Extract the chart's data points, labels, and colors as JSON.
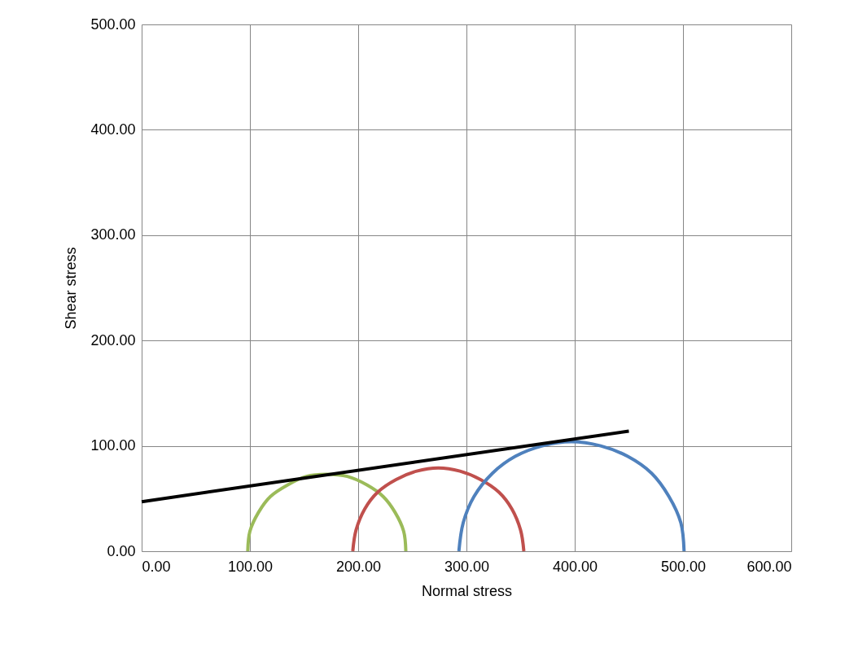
{
  "chart_data": {
    "type": "line",
    "xlabel": "Normal stress",
    "ylabel": "Shear stress",
    "xlim": [
      0,
      600
    ],
    "ylim": [
      0,
      500
    ],
    "xticks": [
      {
        "value": 0,
        "label": "0.00"
      },
      {
        "value": 100,
        "label": "100.00"
      },
      {
        "value": 200,
        "label": "200.00"
      },
      {
        "value": 300,
        "label": "300.00"
      },
      {
        "value": 400,
        "label": "400.00"
      },
      {
        "value": 500,
        "label": "500.00"
      },
      {
        "value": 600,
        "label": "600.00"
      }
    ],
    "yticks": [
      {
        "value": 0,
        "label": "0.00"
      },
      {
        "value": 100,
        "label": "100.00"
      },
      {
        "value": 200,
        "label": "200.00"
      },
      {
        "value": 300,
        "label": "300.00"
      },
      {
        "value": 400,
        "label": "400.00"
      },
      {
        "value": 500,
        "label": "500.00"
      }
    ],
    "grid": true,
    "legend": false,
    "series": [
      {
        "color": "#9bbb59",
        "x": [
          98,
          100,
          108,
          119,
          135,
          152,
          171,
          190,
          208,
          223,
          234,
          242,
          244
        ],
        "values": [
          0,
          19,
          37,
          52,
          63,
          71,
          73,
          71,
          63,
          52,
          37,
          19,
          0
        ]
      },
      {
        "color": "#c0504d",
        "x": [
          195,
          198,
          206,
          218,
          235,
          254,
          274,
          294,
          313,
          330,
          342,
          350,
          353
        ],
        "values": [
          0,
          20,
          40,
          56,
          68,
          76,
          79,
          76,
          68,
          56,
          40,
          20,
          0
        ]
      },
      {
        "color": "#4f81bd",
        "x": [
          293,
          297,
          307,
          324,
          345,
          370,
          397,
          424,
          449,
          471,
          487,
          498,
          501
        ],
        "values": [
          0,
          27,
          52,
          74,
          90,
          100,
          104,
          100,
          90,
          74,
          52,
          27,
          0
        ]
      },
      {
        "color": "#000000",
        "x": [
          0,
          450
        ],
        "values": [
          47,
          114
        ]
      }
    ]
  }
}
